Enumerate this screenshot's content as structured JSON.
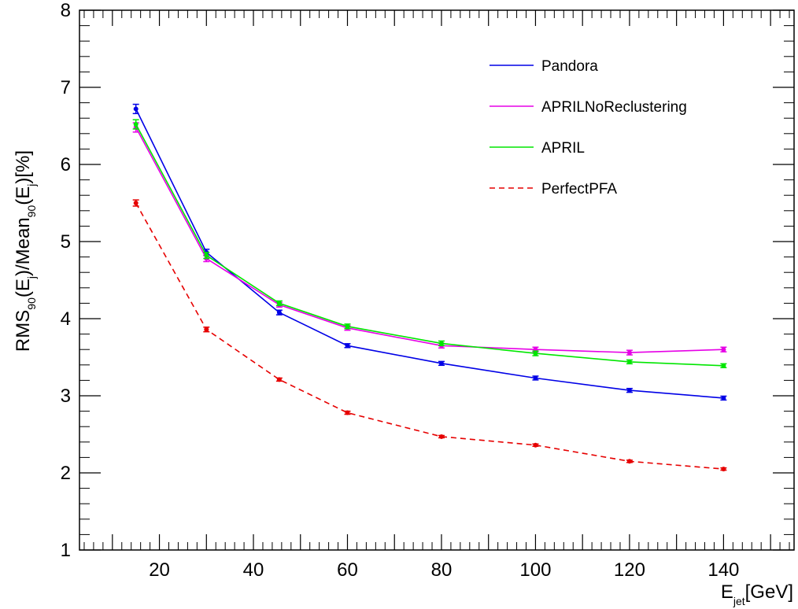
{
  "chart_data": {
    "type": "line",
    "xlabel": {
      "main": "E",
      "sub": "jet",
      "unit": "[GeV]"
    },
    "ylabel": {
      "p1": "RMS",
      "s1": "90",
      "p2": "(E",
      "s2": "j",
      "p3": ")/Mean",
      "s3": "90",
      "p4": "(E",
      "s4": "j",
      "p5": ")[%]"
    },
    "xlim": [
      3,
      155
    ],
    "ylim": [
      1,
      8
    ],
    "x_ticks": [
      20,
      40,
      60,
      80,
      100,
      120,
      140
    ],
    "y_ticks": [
      1,
      2,
      3,
      4,
      5,
      6,
      7,
      8
    ],
    "x": [
      15,
      30,
      45.5,
      60,
      80,
      100,
      120,
      140
    ],
    "legend_position": "top-right",
    "series": [
      {
        "name": "Pandora",
        "color": "#0000e6",
        "dash": "solid",
        "values": [
          6.72,
          4.86,
          4.08,
          3.65,
          3.42,
          3.23,
          3.07,
          2.97
        ],
        "errors": [
          0.06,
          0.04,
          0.03,
          0.025,
          0.025,
          0.025,
          0.025,
          0.025
        ]
      },
      {
        "name": "APRILNoReclustering",
        "color": "#e600e6",
        "dash": "solid",
        "values": [
          6.48,
          4.78,
          4.18,
          3.88,
          3.65,
          3.6,
          3.56,
          3.6
        ],
        "errors": [
          0.06,
          0.04,
          0.03,
          0.03,
          0.03,
          0.03,
          0.03,
          0.03
        ]
      },
      {
        "name": "APRIL",
        "color": "#00e600",
        "dash": "solid",
        "values": [
          6.52,
          4.82,
          4.2,
          3.9,
          3.68,
          3.55,
          3.44,
          3.39
        ],
        "errors": [
          0.06,
          0.04,
          0.03,
          0.03,
          0.03,
          0.03,
          0.025,
          0.025
        ]
      },
      {
        "name": "PerfectPFA",
        "color": "#e60000",
        "dash": "dashed",
        "values": [
          5.5,
          3.86,
          3.21,
          2.78,
          2.47,
          2.36,
          2.15,
          2.05
        ],
        "errors": [
          0.04,
          0.03,
          0.02,
          0.02,
          0.015,
          0.015,
          0.015,
          0.015
        ]
      }
    ]
  }
}
